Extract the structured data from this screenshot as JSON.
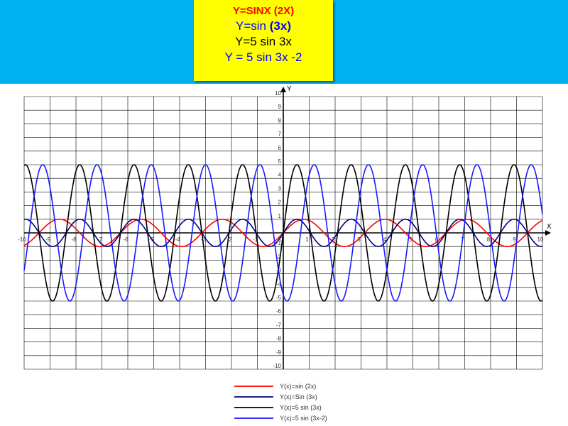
{
  "header": {
    "line1": "Y=SINX (2X)",
    "line2_a": "Y=sin ",
    "line2_b": "(3x)",
    "line3": "Y=5 sin 3x",
    "line4": "Y = 5 sin 3x -2"
  },
  "colors": {
    "band": "#00b0f0",
    "box": "#ffff00",
    "red": "#ff0000",
    "blue": "#0000ff"
  },
  "chart_data": {
    "type": "line",
    "xlabel": "X",
    "ylabel": "Y",
    "xlim": [
      -10,
      10
    ],
    "ylim": [
      -10,
      10
    ],
    "grid": true,
    "legend_position": "bottom-center",
    "x_ticks": [
      "-10",
      "-9",
      "-8",
      "-7",
      "-6",
      "-5",
      "-4",
      "-3",
      "-2",
      "-1",
      "0",
      "1",
      "2",
      "3",
      "4",
      "5",
      "6",
      "7",
      "8",
      "9",
      "10"
    ],
    "y_ticks": [
      "-10",
      "-9",
      "-8",
      "-7",
      "-6",
      "-5",
      "-4",
      "-3",
      "-2",
      "-1",
      "1",
      "2",
      "3",
      "4",
      "5",
      "6",
      "7",
      "8",
      "9",
      "10"
    ],
    "series": [
      {
        "name": "Y(x)=sin (2x)",
        "color": "#ff0000",
        "amplitude": 1,
        "frequency": 2,
        "phase": 0
      },
      {
        "name": "Y(x)=Sin (3x)",
        "color": "#000080",
        "amplitude": 1,
        "frequency": 3,
        "phase": 0
      },
      {
        "name": "Y(x)=5 sin (3x)",
        "color": "#000000",
        "amplitude": 5,
        "frequency": 3,
        "phase": 0
      },
      {
        "name": "Y(x)=5 sin (3x-2)",
        "color": "#1a1aff",
        "amplitude": 5,
        "frequency": 3,
        "phase": -2
      }
    ]
  }
}
